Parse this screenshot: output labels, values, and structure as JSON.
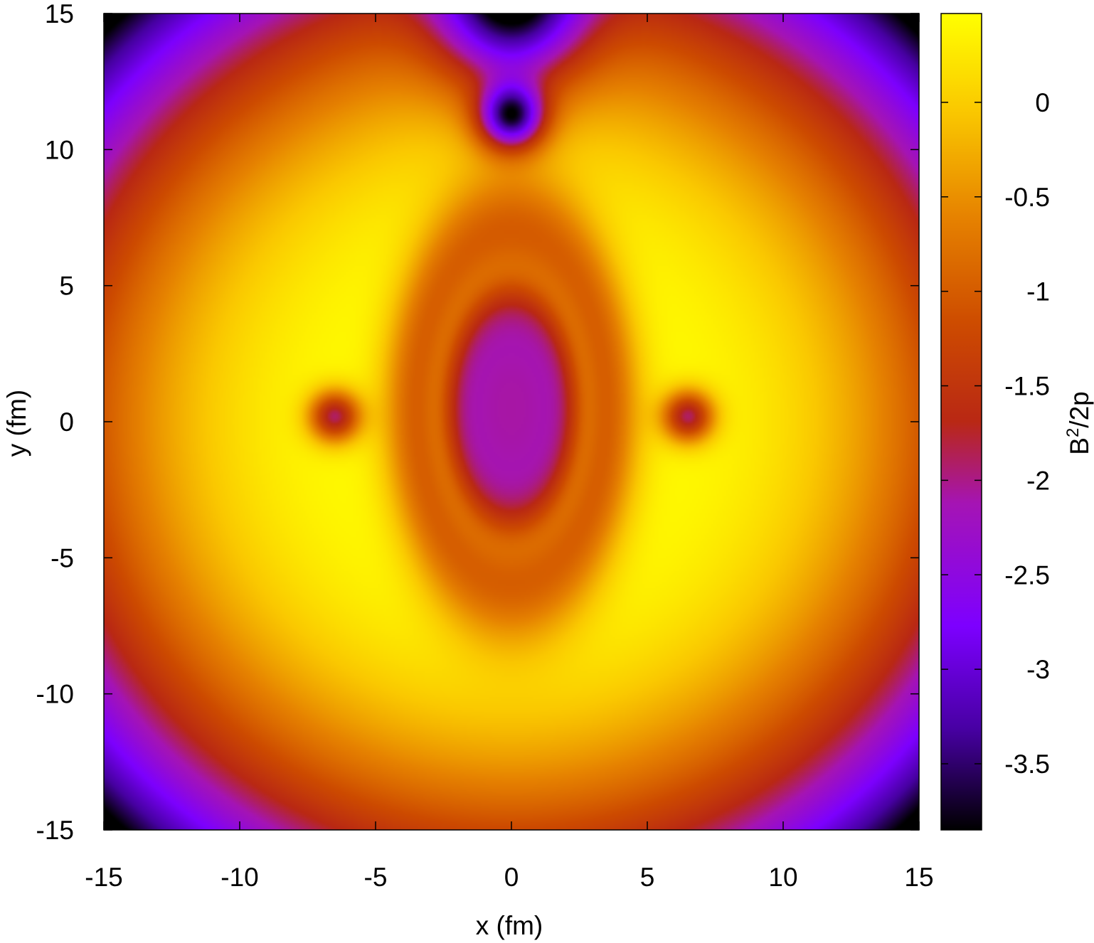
{
  "chart_data": {
    "type": "heatmap",
    "title": "",
    "xlabel": "x (fm)",
    "ylabel": "y (fm)",
    "xlim": [
      -15,
      15
    ],
    "ylim": [
      -15,
      15
    ],
    "x_ticks": [
      -15,
      -10,
      -5,
      0,
      5,
      10,
      15
    ],
    "y_ticks": [
      -15,
      -10,
      -5,
      0,
      5,
      10,
      15
    ],
    "x_tick_labels": [
      "-15",
      "-10",
      "-5",
      "0",
      "5",
      "10",
      "15"
    ],
    "y_tick_labels": [
      "-15",
      "-10",
      "-5",
      "0",
      "5",
      "10",
      "15"
    ],
    "colorbar": {
      "label_base": "B",
      "label_sup": "2",
      "label_rest": "/2p",
      "range": [
        -3.85,
        0.47
      ],
      "ticks": [
        0,
        -0.5,
        -1,
        -1.5,
        -2,
        -2.5,
        -3,
        -3.5
      ],
      "tick_labels": [
        "0",
        "-0.5",
        "-1",
        "-1.5",
        "-2",
        "-2.5",
        "-3",
        "-3.5"
      ],
      "palette": "gnuplot black-purple-red-orange-yellow"
    },
    "field_features": {
      "central_ellipse_center": [
        0,
        0.5
      ],
      "central_ellipse_semi_axes": [
        2.4,
        4.4
      ],
      "central_ellipse_min_value": -2.2,
      "side_point_minima": [
        [
          -6.5,
          0.2
        ],
        [
          6.5,
          0.2
        ]
      ],
      "top_point_minimum": [
        0,
        11.2
      ],
      "top_point_minimum_value": -3.85,
      "corners_value": -2.8
    }
  }
}
